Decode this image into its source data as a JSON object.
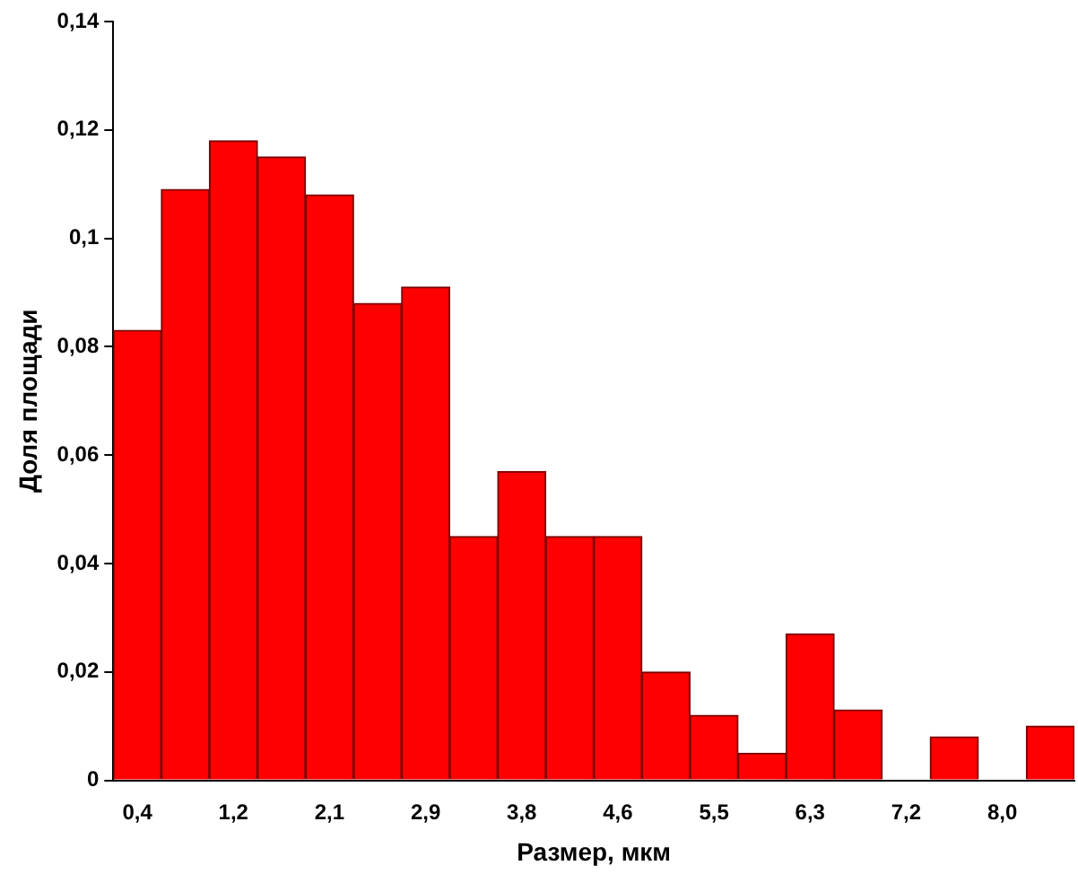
{
  "chart_data": {
    "type": "bar",
    "xlabel": "Размер, мкм",
    "ylabel": "Доля площади",
    "categories": [
      "0,4",
      null,
      "1,2",
      null,
      "2,1",
      null,
      "2,9",
      null,
      "3,8",
      null,
      "4,6",
      null,
      "5,5",
      null,
      "6,3",
      null,
      "7,2",
      null,
      "8,0",
      null
    ],
    "values": [
      0.083,
      0.109,
      0.118,
      0.115,
      0.108,
      0.088,
      0.091,
      0.045,
      0.057,
      0.045,
      0.045,
      0.02,
      0.012,
      0.005,
      0.027,
      0.013,
      0,
      0.008,
      0,
      0.01
    ],
    "color": "#ff0000",
    "ylim": [
      0,
      0.14
    ],
    "yticks": [
      0,
      {
        "value": 0.02,
        "label": "0,02"
      },
      {
        "value": 0.04,
        "label": "0,04"
      },
      {
        "value": 0.06,
        "label": "0,06"
      },
      {
        "value": 0.08,
        "label": "0,08"
      },
      {
        "value": 0.1,
        "label": "0,1"
      },
      {
        "value": 0.12,
        "label": "0,12"
      },
      {
        "value": 0.14,
        "label": "0,14"
      }
    ],
    "grid": false,
    "legend": false
  }
}
